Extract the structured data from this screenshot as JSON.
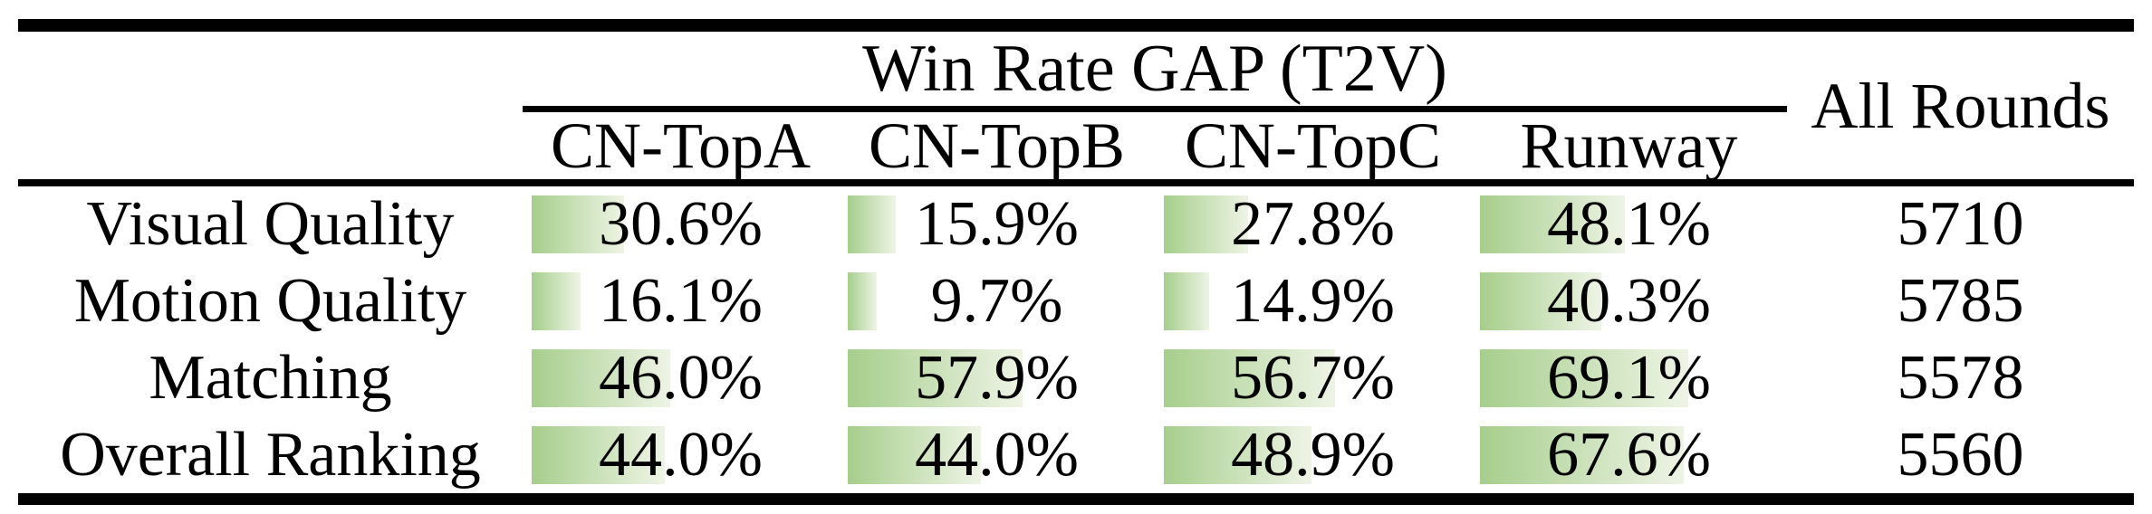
{
  "table": {
    "title": "Win Rate GAP (T2V)",
    "col_headers": [
      "CN-TopA",
      "CN-TopB",
      "CN-TopC",
      "Runway"
    ],
    "all_rounds_header": "All Rounds",
    "rows": [
      {
        "label": "Visual Quality",
        "values": [
          30.6,
          15.9,
          27.8,
          48.1
        ],
        "value_labels": [
          "30.6%",
          "15.9%",
          "27.8%",
          "48.1%"
        ],
        "rounds": "5710"
      },
      {
        "label": "Motion Quality",
        "values": [
          16.1,
          9.7,
          14.9,
          40.3
        ],
        "value_labels": [
          "16.1%",
          "9.7%",
          "14.9%",
          "40.3%"
        ],
        "rounds": "5785"
      },
      {
        "label": "Matching",
        "values": [
          46.0,
          57.9,
          56.7,
          69.1
        ],
        "value_labels": [
          "46.0%",
          "57.9%",
          "56.7%",
          "69.1%"
        ],
        "rounds": "5578"
      },
      {
        "label": "Overall Ranking",
        "values": [
          44.0,
          44.0,
          48.9,
          67.6
        ],
        "value_labels": [
          "44.0%",
          "44.0%",
          "48.9%",
          "67.6%"
        ],
        "rounds": "5560"
      }
    ]
  },
  "chart_data": {
    "type": "table",
    "title": "Win Rate GAP (T2V)",
    "row_categories": [
      "Visual Quality",
      "Motion Quality",
      "Matching",
      "Overall Ranking"
    ],
    "columns": [
      "CN-TopA",
      "CN-TopB",
      "CN-TopC",
      "Runway",
      "All Rounds"
    ],
    "series": [
      {
        "name": "CN-TopA",
        "unit": "%",
        "values": [
          30.6,
          16.1,
          46.0,
          44.0
        ]
      },
      {
        "name": "CN-TopB",
        "unit": "%",
        "values": [
          15.9,
          9.7,
          57.9,
          44.0
        ]
      },
      {
        "name": "CN-TopC",
        "unit": "%",
        "values": [
          27.8,
          14.9,
          56.7,
          48.9
        ]
      },
      {
        "name": "Runway",
        "unit": "%",
        "values": [
          48.1,
          40.3,
          69.1,
          67.6
        ]
      },
      {
        "name": "All Rounds",
        "unit": "rounds",
        "values": [
          5710,
          5785,
          5578,
          5560
        ]
      }
    ],
    "bar_scale": {
      "min": 0,
      "max": 100
    },
    "layout_hints": "in-cell horizontal data bars, left-anchored, length proportional to percent"
  },
  "colors": {
    "bar_gradient_start": "#a6ce8c",
    "bar_gradient_end": "#eef4e5",
    "rule": "#000000",
    "text": "#000000",
    "background": "#ffffff"
  }
}
